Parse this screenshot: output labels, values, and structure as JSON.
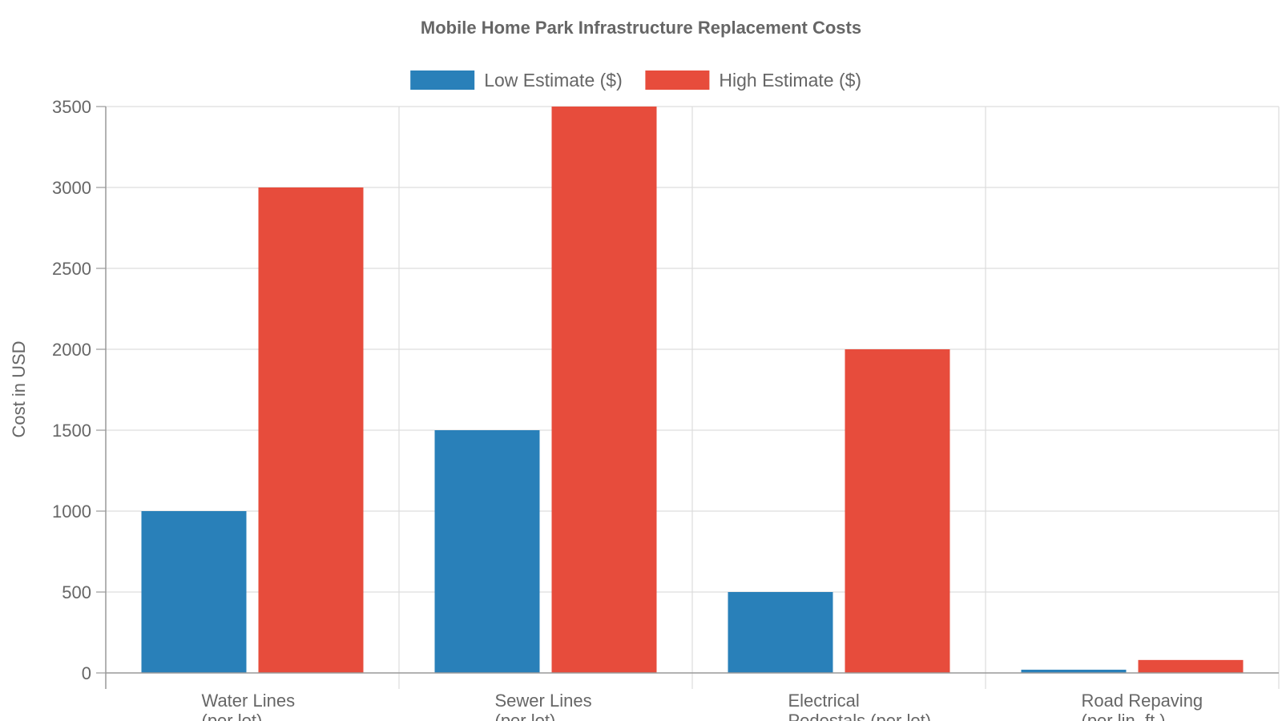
{
  "chart_data": {
    "type": "bar",
    "title": "Mobile Home Park Infrastructure Replacement Costs",
    "xlabel": "",
    "ylabel": "Cost in USD",
    "categories": [
      [
        "Water Lines",
        "(per lot)"
      ],
      [
        "Sewer Lines",
        "(per lot)"
      ],
      [
        "Electrical",
        "Pedestals (per lot)"
      ],
      [
        "Road Repaving",
        "(per lin. ft.)"
      ]
    ],
    "series": [
      {
        "name": "Low Estimate ($)",
        "color": "#2980b9",
        "values": [
          1000,
          1500,
          500,
          20
        ]
      },
      {
        "name": "High Estimate ($)",
        "color": "#e74c3c",
        "values": [
          3000,
          3500,
          2000,
          80
        ]
      }
    ],
    "ylim": [
      0,
      3500
    ],
    "yticks": [
      0,
      500,
      1000,
      1500,
      2000,
      2500,
      3000,
      3500
    ],
    "grid": true,
    "legend_position": "top-center"
  }
}
